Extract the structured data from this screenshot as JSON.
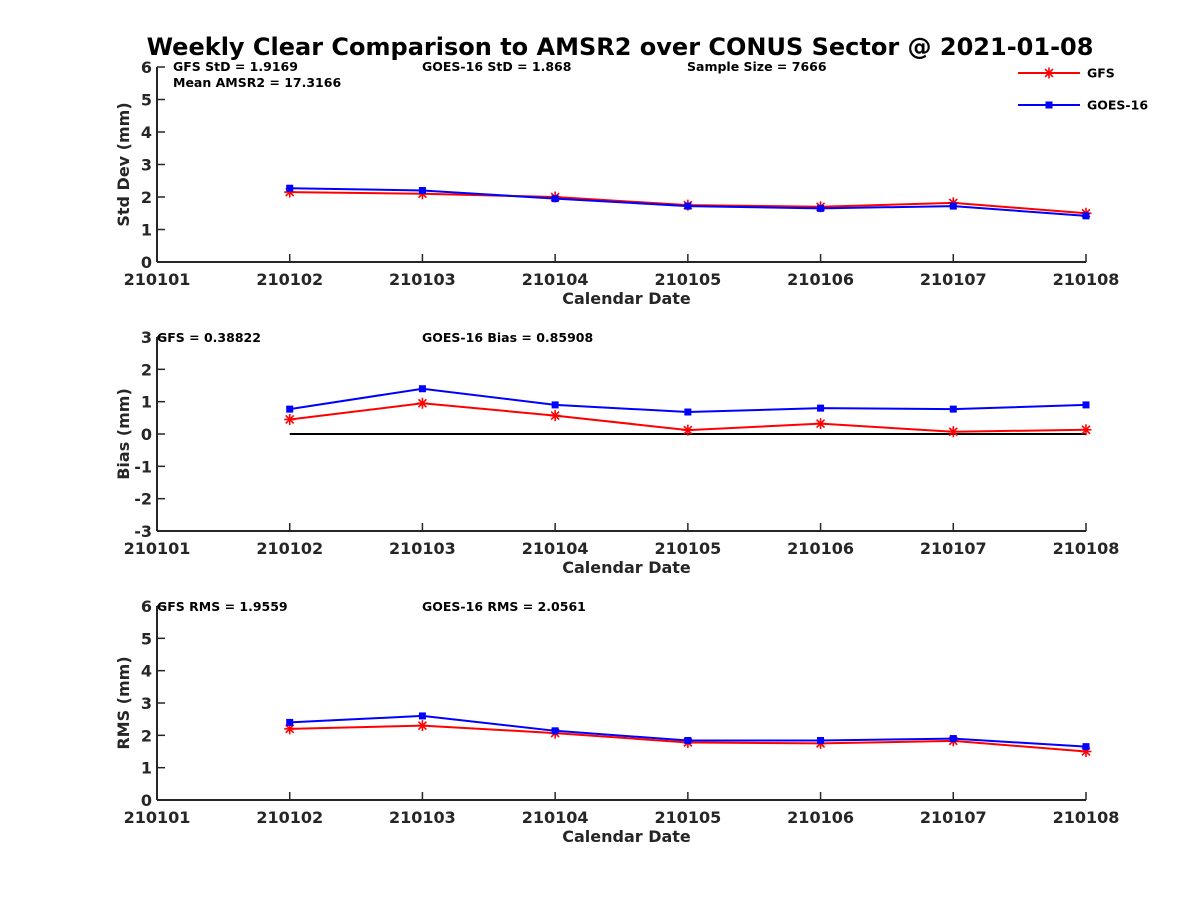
{
  "title": "Weekly Clear Comparison to AMSR2 over CONUS Sector @ 2021-01-08",
  "legend": {
    "items": [
      {
        "name": "GFS",
        "color": "#ff0000",
        "marker": "asterisk"
      },
      {
        "name": "GOES-16",
        "color": "#0000ff",
        "marker": "square"
      }
    ],
    "placement": "top-right"
  },
  "chart_data": [
    {
      "type": "line",
      "x": [
        "210101",
        "210102",
        "210103",
        "210104",
        "210105",
        "210106",
        "210107",
        "210108"
      ],
      "xlabel": "Calendar Date",
      "ylabel": "Std Dev (mm)",
      "ylim": [
        0,
        6
      ],
      "yticks": [
        "0",
        "1",
        "2",
        "3",
        "4",
        "5",
        "6"
      ],
      "annotations": [
        "GFS StD = 1.9169",
        "Mean AMSR2 = 17.3166",
        "GOES-16 StD = 1.868",
        "Sample Size = 7666"
      ],
      "series": [
        {
          "name": "GFS",
          "color": "#ff0000",
          "marker": "asterisk",
          "values": [
            null,
            2.15,
            2.1,
            2.0,
            1.75,
            1.7,
            1.82,
            1.5
          ]
        },
        {
          "name": "GOES-16",
          "color": "#0000ff",
          "marker": "square",
          "values": [
            null,
            2.27,
            2.2,
            1.95,
            1.72,
            1.65,
            1.72,
            1.42
          ]
        }
      ],
      "reference_line": null
    },
    {
      "type": "line",
      "x": [
        "210101",
        "210102",
        "210103",
        "210104",
        "210105",
        "210106",
        "210107",
        "210108"
      ],
      "xlabel": "Calendar Date",
      "ylabel": "Bias (mm)",
      "ylim": [
        -3,
        3
      ],
      "yticks": [
        "-3",
        "-2",
        "-1",
        "0",
        "1",
        "2",
        "3"
      ],
      "annotations": [
        "GFS = 0.38822",
        "GOES-16 Bias  = 0.85908"
      ],
      "series": [
        {
          "name": "GFS",
          "color": "#ff0000",
          "marker": "asterisk",
          "values": [
            null,
            0.45,
            0.95,
            0.57,
            0.12,
            0.32,
            0.07,
            0.13
          ]
        },
        {
          "name": "GOES-16",
          "color": "#0000ff",
          "marker": "square",
          "values": [
            null,
            0.77,
            1.4,
            0.9,
            0.68,
            0.8,
            0.77,
            0.9
          ]
        }
      ],
      "reference_line": {
        "y": 0,
        "from": "210102",
        "to": "210108",
        "color": "#000000"
      }
    },
    {
      "type": "line",
      "x": [
        "210101",
        "210102",
        "210103",
        "210104",
        "210105",
        "210106",
        "210107",
        "210108"
      ],
      "xlabel": "Calendar Date",
      "ylabel": "RMS (mm)",
      "ylim": [
        0,
        6
      ],
      "yticks": [
        "0",
        "1",
        "2",
        "3",
        "4",
        "5",
        "6"
      ],
      "annotations": [
        "GFS RMS = 1.9559",
        "GOES-16 RMS = 2.0561"
      ],
      "series": [
        {
          "name": "GFS",
          "color": "#ff0000",
          "marker": "asterisk",
          "values": [
            null,
            2.2,
            2.3,
            2.07,
            1.78,
            1.75,
            1.83,
            1.5
          ]
        },
        {
          "name": "GOES-16",
          "color": "#0000ff",
          "marker": "square",
          "values": [
            null,
            2.4,
            2.6,
            2.14,
            1.84,
            1.84,
            1.9,
            1.65
          ]
        }
      ],
      "reference_line": null
    }
  ]
}
